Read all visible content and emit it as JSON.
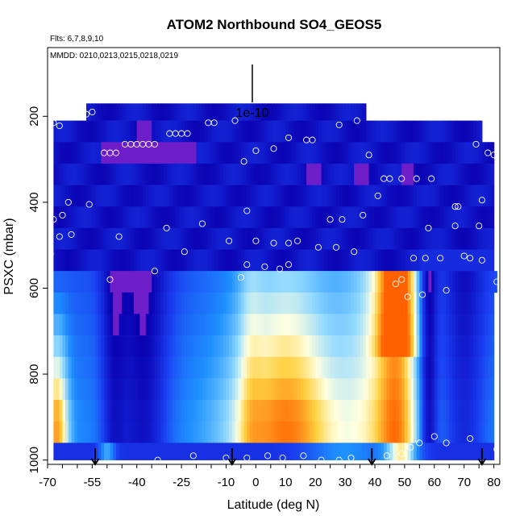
{
  "chart_data": {
    "type": "heatmap",
    "title": "ATOM2 Northbound SO4_GEOS5",
    "subtitle_flights": "Flts: 6,7,8,9,10",
    "subtitle_dates": "MMDD: 0210,0213,0215,0218,0219",
    "scale_label": "1e-10",
    "xlabel": "Latitude (deg N)",
    "ylabel": "PSXC (mbar)",
    "xlim": [
      -70,
      82
    ],
    "ylim": [
      1010,
      40
    ],
    "y_reversed": true,
    "x_ticks": [
      -70,
      -55,
      -40,
      -25,
      -10,
      0,
      10,
      20,
      30,
      40,
      50,
      60,
      70,
      80
    ],
    "y_ticks": [
      200,
      400,
      600,
      800,
      1000
    ],
    "x_minor_tick_step": 5,
    "grid": false,
    "legend": "none",
    "colormap": [
      "#0a00b0",
      "#1a3cf0",
      "#1e90ff",
      "#8fd8ff",
      "#ffffe0",
      "#ffd040",
      "#ff6000",
      "#7a1fd0"
    ],
    "layers": [
      {
        "p_top": 170,
        "p_bot": 210,
        "lat_min": -57,
        "lat_max": 37
      },
      {
        "p_top": 210,
        "p_bot": 260,
        "lat_min": -68,
        "lat_max": 76
      },
      {
        "p_top": 260,
        "p_bot": 310,
        "lat_min": -68,
        "lat_max": 80
      },
      {
        "p_top": 310,
        "p_bot": 360,
        "lat_min": -68,
        "lat_max": 80
      },
      {
        "p_top": 360,
        "p_bot": 410,
        "lat_min": -68,
        "lat_max": 80
      },
      {
        "p_top": 410,
        "p_bot": 460,
        "lat_min": -68,
        "lat_max": 80
      },
      {
        "p_top": 460,
        "p_bot": 510,
        "lat_min": -68,
        "lat_max": 80
      },
      {
        "p_top": 510,
        "p_bot": 560,
        "lat_min": -68,
        "lat_max": 80
      },
      {
        "p_top": 560,
        "p_bot": 610,
        "lat_min": -68,
        "lat_max": 81
      },
      {
        "p_top": 610,
        "p_bot": 660,
        "lat_min": -68,
        "lat_max": 80
      },
      {
        "p_top": 660,
        "p_bot": 710,
        "lat_min": -68,
        "lat_max": 80
      },
      {
        "p_top": 710,
        "p_bot": 760,
        "lat_min": -68,
        "lat_max": 80
      },
      {
        "p_top": 760,
        "p_bot": 810,
        "lat_min": -68,
        "lat_max": 80
      },
      {
        "p_top": 810,
        "p_bot": 860,
        "lat_min": -68,
        "lat_max": 80
      },
      {
        "p_top": 860,
        "p_bot": 910,
        "lat_min": -68,
        "lat_max": 80
      },
      {
        "p_top": 910,
        "p_bot": 960,
        "lat_min": -68,
        "lat_max": 80
      },
      {
        "p_top": 960,
        "p_bot": 1000,
        "lat_min": -68,
        "lat_max": 80
      }
    ],
    "observations": [
      [
        -57,
        195
      ],
      [
        -55,
        190
      ],
      [
        -68,
        215
      ],
      [
        -66,
        222
      ],
      [
        -70,
        240
      ],
      [
        -51,
        285
      ],
      [
        -49,
        285
      ],
      [
        -47,
        285
      ],
      [
        -44,
        265
      ],
      [
        -42,
        265
      ],
      [
        -40,
        265
      ],
      [
        -38,
        265
      ],
      [
        -36,
        265
      ],
      [
        -34,
        265
      ],
      [
        -29,
        240
      ],
      [
        -27,
        240
      ],
      [
        -25,
        240
      ],
      [
        -23,
        240
      ],
      [
        -16,
        215
      ],
      [
        -14,
        215
      ],
      [
        -7,
        210
      ],
      [
        0,
        280
      ],
      [
        6,
        275
      ],
      [
        11,
        250
      ],
      [
        17,
        255
      ],
      [
        19,
        255
      ],
      [
        28,
        220
      ],
      [
        34,
        210
      ],
      [
        -4,
        305
      ],
      [
        38,
        290
      ],
      [
        43,
        345
      ],
      [
        45,
        345
      ],
      [
        49,
        345
      ],
      [
        54,
        345
      ],
      [
        59,
        345
      ],
      [
        74,
        265
      ],
      [
        78,
        285
      ],
      [
        80,
        290
      ],
      [
        -63,
        400
      ],
      [
        -56,
        405
      ],
      [
        -65,
        430
      ],
      [
        -68,
        440
      ],
      [
        -3,
        420
      ],
      [
        36,
        430
      ],
      [
        41,
        385
      ],
      [
        67,
        410
      ],
      [
        68,
        410
      ],
      [
        76,
        395
      ],
      [
        -66,
        480
      ],
      [
        -62,
        475
      ],
      [
        -46,
        480
      ],
      [
        -30,
        460
      ],
      [
        -18,
        450
      ],
      [
        -9,
        490
      ],
      [
        0,
        490
      ],
      [
        6,
        495
      ],
      [
        11,
        495
      ],
      [
        14,
        490
      ],
      [
        21,
        505
      ],
      [
        25,
        440
      ],
      [
        29,
        440
      ],
      [
        33,
        515
      ],
      [
        27,
        505
      ],
      [
        58,
        460
      ],
      [
        67,
        455
      ],
      [
        75,
        455
      ],
      [
        -69,
        520
      ],
      [
        -24,
        515
      ],
      [
        -3,
        545
      ],
      [
        3,
        550
      ],
      [
        8,
        555
      ],
      [
        11,
        545
      ],
      [
        62,
        530
      ],
      [
        70,
        525
      ],
      [
        72,
        530
      ],
      [
        76,
        535
      ],
      [
        53,
        530
      ],
      [
        57,
        530
      ],
      [
        -34,
        560
      ],
      [
        -49,
        580
      ],
      [
        -5,
        575
      ],
      [
        47,
        590
      ],
      [
        49,
        580
      ],
      [
        51,
        620
      ],
      [
        56,
        615
      ],
      [
        64,
        605
      ],
      [
        81,
        585
      ],
      [
        60,
        945
      ],
      [
        64,
        960
      ],
      [
        55,
        960
      ],
      [
        72,
        950
      ],
      [
        81,
        975
      ],
      [
        -33,
        1000
      ],
      [
        -21,
        990
      ],
      [
        -10,
        995
      ],
      [
        -3,
        995
      ],
      [
        4,
        990
      ],
      [
        9,
        995
      ],
      [
        16,
        990
      ],
      [
        22,
        1000
      ],
      [
        28,
        1000
      ],
      [
        32,
        995
      ],
      [
        44,
        990
      ],
      [
        49,
        985
      ],
      [
        52,
        970
      ]
    ],
    "arrows_lat": [
      -54,
      -8,
      39,
      76
    ]
  }
}
